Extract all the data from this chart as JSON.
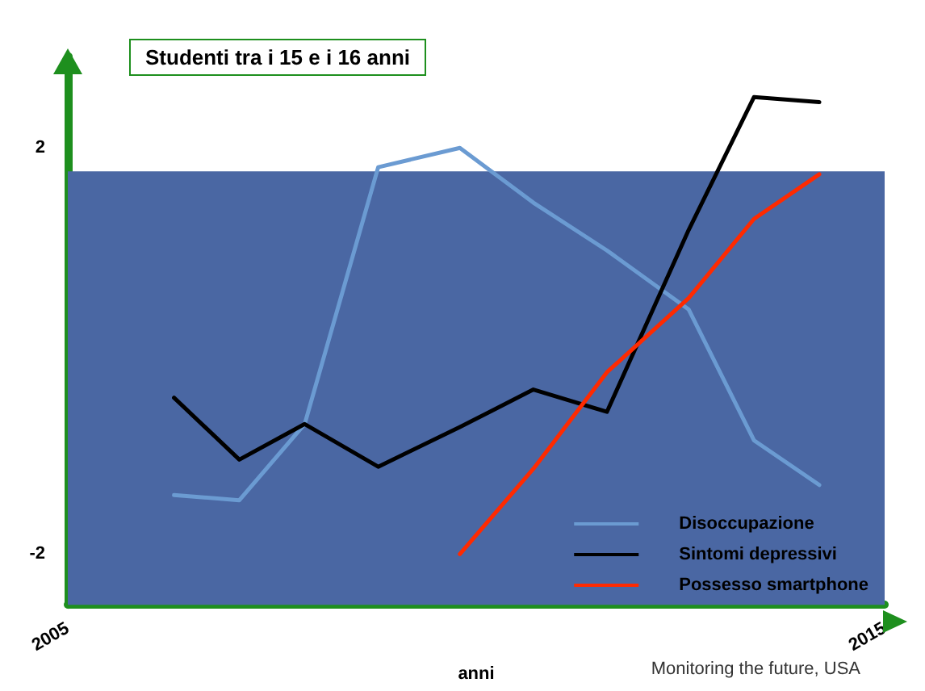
{
  "chart_data": {
    "type": "line",
    "title": "Studenti tra i 15 e i 16 anni",
    "xlabel": "anni",
    "annotations": [
      "Monitoring the future, USA"
    ],
    "xlim": [
      2005,
      2015
    ],
    "xticks": [
      2005,
      2015
    ],
    "ylim": [
      -2.5,
      2.9
    ],
    "yticks": [
      -2,
      2
    ],
    "grid": false,
    "legend": "bottom right",
    "marker": "none",
    "line_style": "solid",
    "bands": [
      {
        "axis": "y",
        "from": -2.5,
        "to": 1.77,
        "color": "#4a67a3"
      }
    ],
    "series": [
      {
        "name": "Disoccupazione",
        "color": "#6b9bd2",
        "x": [
          2006.3,
          2007.1,
          2007.9,
          2008.8,
          2009.8,
          2010.7,
          2011.6,
          2012.6,
          2013.4,
          2014.2
        ],
        "values": [
          -1.42,
          -1.47,
          -0.72,
          1.81,
          2.0,
          1.46,
          0.99,
          0.41,
          -0.88,
          -1.32
        ]
      },
      {
        "name": "Sintomi depressivi",
        "color": "#000000",
        "x": [
          2006.3,
          2007.1,
          2007.9,
          2008.8,
          2009.8,
          2010.7,
          2011.6,
          2012.6,
          2013.4,
          2014.2
        ],
        "values": [
          -0.46,
          -1.07,
          -0.72,
          -1.14,
          -0.75,
          -0.38,
          -0.6,
          1.19,
          2.5,
          2.45
        ]
      },
      {
        "name": "Possesso smartphone",
        "color": "#ff2a00",
        "x": [
          2009.8,
          2010.7,
          2011.6,
          2012.6,
          2013.4,
          2014.2
        ],
        "values": [
          -2.0,
          -1.16,
          -0.21,
          0.52,
          1.3,
          1.74
        ]
      }
    ]
  }
}
